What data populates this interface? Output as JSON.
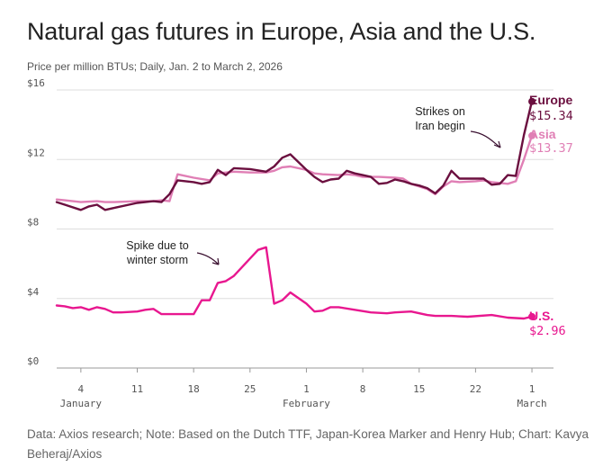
{
  "chart_data": {
    "type": "line",
    "title": "Natural gas futures in Europe, Asia and the U.S.",
    "subtitle": "Price per million BTUs; Daily, Jan. 2 to March 2, 2026",
    "ylim": [
      0,
      16
    ],
    "yticks": [
      {
        "value": 16,
        "label": "$16"
      },
      {
        "value": 12,
        "label": "$12"
      },
      {
        "value": 8,
        "label": "$8"
      },
      {
        "value": 4,
        "label": "$4"
      },
      {
        "value": 0,
        "label": "$0"
      }
    ],
    "xticks": [
      {
        "day": 4,
        "label": "4"
      },
      {
        "day": 11,
        "label": "11"
      },
      {
        "day": 18,
        "label": "18"
      },
      {
        "day": 25,
        "label": "25"
      },
      {
        "day": 32,
        "label": "1"
      },
      {
        "day": 39,
        "label": "8"
      },
      {
        "day": 46,
        "label": "15"
      },
      {
        "day": 53,
        "label": "22"
      },
      {
        "day": 60,
        "label": "1"
      }
    ],
    "month_labels": [
      {
        "day": 4,
        "label": "January"
      },
      {
        "day": 32,
        "label": "February"
      },
      {
        "day": 60,
        "label": "March"
      }
    ],
    "series": [
      {
        "name": "Europe",
        "end_label": "$15.34",
        "color": "#6b0f3f",
        "points": [
          [
            1,
            9.55
          ],
          [
            2,
            9.4
          ],
          [
            4,
            9.1
          ],
          [
            5,
            9.3
          ],
          [
            6,
            9.4
          ],
          [
            7,
            9.1
          ],
          [
            8,
            9.2
          ],
          [
            11,
            9.5
          ],
          [
            13,
            9.6
          ],
          [
            14,
            9.55
          ],
          [
            15,
            10.0
          ],
          [
            16,
            10.8
          ],
          [
            18,
            10.7
          ],
          [
            19,
            10.6
          ],
          [
            20,
            10.7
          ],
          [
            21,
            11.4
          ],
          [
            22,
            11.1
          ],
          [
            23,
            11.5
          ],
          [
            25,
            11.45
          ],
          [
            27,
            11.3
          ],
          [
            28,
            11.6
          ],
          [
            29,
            12.1
          ],
          [
            30,
            12.3
          ],
          [
            32,
            11.4
          ],
          [
            33,
            11.0
          ],
          [
            34,
            10.7
          ],
          [
            35,
            10.85
          ],
          [
            36,
            10.9
          ],
          [
            37,
            11.35
          ],
          [
            38,
            11.2
          ],
          [
            39,
            11.1
          ],
          [
            40,
            11.0
          ],
          [
            41,
            10.6
          ],
          [
            42,
            10.65
          ],
          [
            43,
            10.85
          ],
          [
            44,
            10.75
          ],
          [
            45,
            10.6
          ],
          [
            46,
            10.5
          ],
          [
            47,
            10.35
          ],
          [
            48,
            10.05
          ],
          [
            49,
            10.5
          ],
          [
            50,
            11.35
          ],
          [
            51,
            10.9
          ],
          [
            52,
            10.9
          ],
          [
            53,
            10.9
          ],
          [
            54,
            10.9
          ],
          [
            55,
            10.55
          ],
          [
            56,
            10.6
          ],
          [
            57,
            11.1
          ],
          [
            58,
            11.05
          ],
          [
            59,
            13.4
          ],
          [
            60,
            15.34
          ]
        ]
      },
      {
        "name": "Asia",
        "end_label": "$13.37",
        "color": "#e07fb5",
        "points": [
          [
            1,
            9.7
          ],
          [
            2,
            9.65
          ],
          [
            4,
            9.55
          ],
          [
            6,
            9.6
          ],
          [
            7,
            9.55
          ],
          [
            8,
            9.55
          ],
          [
            11,
            9.6
          ],
          [
            13,
            9.6
          ],
          [
            14,
            9.65
          ],
          [
            15,
            9.6
          ],
          [
            16,
            11.15
          ],
          [
            18,
            10.95
          ],
          [
            20,
            10.8
          ],
          [
            21,
            11.2
          ],
          [
            23,
            11.3
          ],
          [
            25,
            11.25
          ],
          [
            27,
            11.25
          ],
          [
            28,
            11.35
          ],
          [
            29,
            11.55
          ],
          [
            30,
            11.6
          ],
          [
            32,
            11.4
          ],
          [
            33,
            11.2
          ],
          [
            34,
            11.15
          ],
          [
            36,
            11.1
          ],
          [
            37,
            11.15
          ],
          [
            38,
            11.1
          ],
          [
            39,
            11.0
          ],
          [
            41,
            11.0
          ],
          [
            43,
            10.95
          ],
          [
            44,
            10.9
          ],
          [
            45,
            10.6
          ],
          [
            46,
            10.45
          ],
          [
            47,
            10.3
          ],
          [
            48,
            10.0
          ],
          [
            49,
            10.45
          ],
          [
            50,
            10.75
          ],
          [
            51,
            10.7
          ],
          [
            53,
            10.75
          ],
          [
            54,
            10.8
          ],
          [
            55,
            10.7
          ],
          [
            56,
            10.65
          ],
          [
            57,
            10.6
          ],
          [
            58,
            10.75
          ],
          [
            59,
            12.0
          ],
          [
            60,
            13.37
          ]
        ]
      },
      {
        "name": "U.S.",
        "end_label": "$2.96",
        "color": "#e8178f",
        "points": [
          [
            1,
            3.6
          ],
          [
            2,
            3.55
          ],
          [
            3,
            3.45
          ],
          [
            4,
            3.5
          ],
          [
            5,
            3.35
          ],
          [
            6,
            3.5
          ],
          [
            7,
            3.4
          ],
          [
            8,
            3.2
          ],
          [
            9,
            3.2
          ],
          [
            11,
            3.25
          ],
          [
            12,
            3.35
          ],
          [
            13,
            3.4
          ],
          [
            14,
            3.1
          ],
          [
            15,
            3.1
          ],
          [
            16,
            3.1
          ],
          [
            18,
            3.1
          ],
          [
            19,
            3.9
          ],
          [
            20,
            3.9
          ],
          [
            21,
            4.9
          ],
          [
            22,
            5.0
          ],
          [
            23,
            5.3
          ],
          [
            25,
            6.3
          ],
          [
            26,
            6.8
          ],
          [
            27,
            6.95
          ],
          [
            28,
            3.7
          ],
          [
            29,
            3.9
          ],
          [
            30,
            4.35
          ],
          [
            32,
            3.7
          ],
          [
            33,
            3.25
          ],
          [
            34,
            3.3
          ],
          [
            35,
            3.5
          ],
          [
            36,
            3.5
          ],
          [
            38,
            3.35
          ],
          [
            40,
            3.2
          ],
          [
            42,
            3.15
          ],
          [
            43,
            3.2
          ],
          [
            45,
            3.25
          ],
          [
            47,
            3.05
          ],
          [
            48,
            3.0
          ],
          [
            50,
            3.0
          ],
          [
            52,
            2.95
          ],
          [
            55,
            3.05
          ],
          [
            57,
            2.9
          ],
          [
            59,
            2.85
          ],
          [
            60,
            2.96
          ]
        ]
      }
    ],
    "annotations": [
      {
        "lines": [
          "Strikes on",
          "Iran begin"
        ]
      },
      {
        "lines": [
          "Spike due to",
          "winter storm"
        ]
      }
    ]
  },
  "footer": "Data: Axios research; Note: Based on the Dutch TTF, Japan-Korea Marker and Henry Hub; Chart: Kavya Beheraj/Axios"
}
